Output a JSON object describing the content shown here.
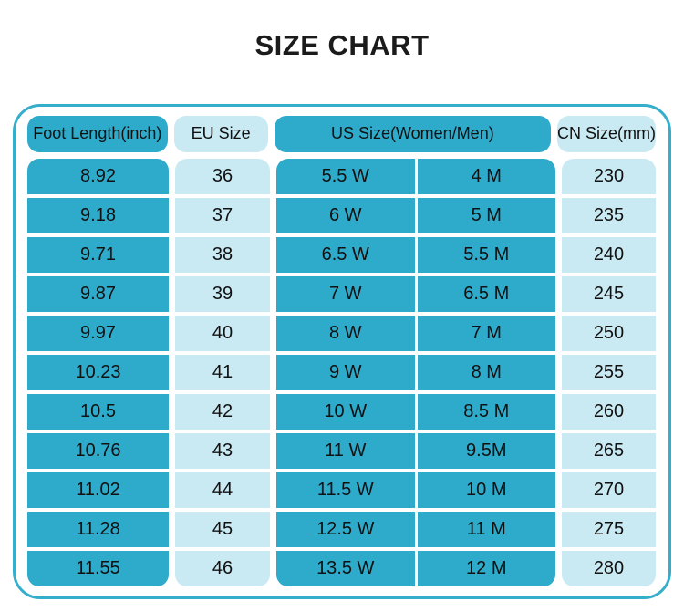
{
  "title": "SIZE CHART",
  "colors": {
    "teal": "#2eaacb",
    "light_cyan": "#c9e9f3",
    "border": "#35aecb",
    "text": "#111111",
    "title": "#1b1b1b"
  },
  "chart_data": {
    "type": "table",
    "title": "SIZE CHART",
    "headers": [
      "Foot Length(inch)",
      "EU Size",
      "US Size(Women/Men)",
      "CN Size(mm)"
    ],
    "columns": [
      "Foot Length(inch)",
      "EU Size",
      "US Size(Women)",
      "US Size(Men)",
      "CN Size(mm)"
    ],
    "rows": [
      [
        "8.92",
        "36",
        "5.5 W",
        "4 M",
        "230"
      ],
      [
        "9.18",
        "37",
        "6 W",
        "5 M",
        "235"
      ],
      [
        "9.71",
        "38",
        "6.5 W",
        "5.5 M",
        "240"
      ],
      [
        "9.87",
        "39",
        "7 W",
        "6.5 M",
        "245"
      ],
      [
        "9.97",
        "40",
        "8 W",
        "7 M",
        "250"
      ],
      [
        "10.23",
        "41",
        "9 W",
        "8 M",
        "255"
      ],
      [
        "10.5",
        "42",
        "10 W",
        "8.5 M",
        "260"
      ],
      [
        "10.76",
        "43",
        "11 W",
        "9.5M",
        "265"
      ],
      [
        "11.02",
        "44",
        "11.5 W",
        "10 M",
        "270"
      ],
      [
        "11.28",
        "45",
        "12.5 W",
        "11 M",
        "275"
      ],
      [
        "11.55",
        "46",
        "13.5 W",
        "12 M",
        "280"
      ]
    ]
  }
}
